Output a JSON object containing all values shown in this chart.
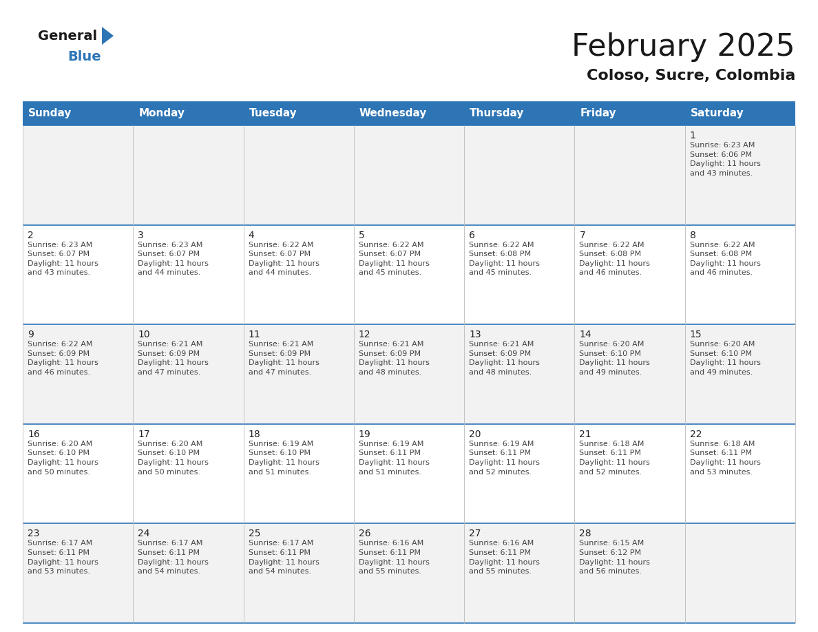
{
  "title": "February 2025",
  "subtitle": "Coloso, Sucre, Colombia",
  "header_bg_color": "#2e75b6",
  "header_text_color": "#ffffff",
  "cell_bg_color_odd": "#f2f2f2",
  "cell_bg_color_even": "#ffffff",
  "border_color": "#2e75b6",
  "day_headers": [
    "Sunday",
    "Monday",
    "Tuesday",
    "Wednesday",
    "Thursday",
    "Friday",
    "Saturday"
  ],
  "weeks": [
    [
      {
        "day": null,
        "text": ""
      },
      {
        "day": null,
        "text": ""
      },
      {
        "day": null,
        "text": ""
      },
      {
        "day": null,
        "text": ""
      },
      {
        "day": null,
        "text": ""
      },
      {
        "day": null,
        "text": ""
      },
      {
        "day": 1,
        "text": "Sunrise: 6:23 AM\nSunset: 6:06 PM\nDaylight: 11 hours\nand 43 minutes."
      }
    ],
    [
      {
        "day": 2,
        "text": "Sunrise: 6:23 AM\nSunset: 6:07 PM\nDaylight: 11 hours\nand 43 minutes."
      },
      {
        "day": 3,
        "text": "Sunrise: 6:23 AM\nSunset: 6:07 PM\nDaylight: 11 hours\nand 44 minutes."
      },
      {
        "day": 4,
        "text": "Sunrise: 6:22 AM\nSunset: 6:07 PM\nDaylight: 11 hours\nand 44 minutes."
      },
      {
        "day": 5,
        "text": "Sunrise: 6:22 AM\nSunset: 6:07 PM\nDaylight: 11 hours\nand 45 minutes."
      },
      {
        "day": 6,
        "text": "Sunrise: 6:22 AM\nSunset: 6:08 PM\nDaylight: 11 hours\nand 45 minutes."
      },
      {
        "day": 7,
        "text": "Sunrise: 6:22 AM\nSunset: 6:08 PM\nDaylight: 11 hours\nand 46 minutes."
      },
      {
        "day": 8,
        "text": "Sunrise: 6:22 AM\nSunset: 6:08 PM\nDaylight: 11 hours\nand 46 minutes."
      }
    ],
    [
      {
        "day": 9,
        "text": "Sunrise: 6:22 AM\nSunset: 6:09 PM\nDaylight: 11 hours\nand 46 minutes."
      },
      {
        "day": 10,
        "text": "Sunrise: 6:21 AM\nSunset: 6:09 PM\nDaylight: 11 hours\nand 47 minutes."
      },
      {
        "day": 11,
        "text": "Sunrise: 6:21 AM\nSunset: 6:09 PM\nDaylight: 11 hours\nand 47 minutes."
      },
      {
        "day": 12,
        "text": "Sunrise: 6:21 AM\nSunset: 6:09 PM\nDaylight: 11 hours\nand 48 minutes."
      },
      {
        "day": 13,
        "text": "Sunrise: 6:21 AM\nSunset: 6:09 PM\nDaylight: 11 hours\nand 48 minutes."
      },
      {
        "day": 14,
        "text": "Sunrise: 6:20 AM\nSunset: 6:10 PM\nDaylight: 11 hours\nand 49 minutes."
      },
      {
        "day": 15,
        "text": "Sunrise: 6:20 AM\nSunset: 6:10 PM\nDaylight: 11 hours\nand 49 minutes."
      }
    ],
    [
      {
        "day": 16,
        "text": "Sunrise: 6:20 AM\nSunset: 6:10 PM\nDaylight: 11 hours\nand 50 minutes."
      },
      {
        "day": 17,
        "text": "Sunrise: 6:20 AM\nSunset: 6:10 PM\nDaylight: 11 hours\nand 50 minutes."
      },
      {
        "day": 18,
        "text": "Sunrise: 6:19 AM\nSunset: 6:10 PM\nDaylight: 11 hours\nand 51 minutes."
      },
      {
        "day": 19,
        "text": "Sunrise: 6:19 AM\nSunset: 6:11 PM\nDaylight: 11 hours\nand 51 minutes."
      },
      {
        "day": 20,
        "text": "Sunrise: 6:19 AM\nSunset: 6:11 PM\nDaylight: 11 hours\nand 52 minutes."
      },
      {
        "day": 21,
        "text": "Sunrise: 6:18 AM\nSunset: 6:11 PM\nDaylight: 11 hours\nand 52 minutes."
      },
      {
        "day": 22,
        "text": "Sunrise: 6:18 AM\nSunset: 6:11 PM\nDaylight: 11 hours\nand 53 minutes."
      }
    ],
    [
      {
        "day": 23,
        "text": "Sunrise: 6:17 AM\nSunset: 6:11 PM\nDaylight: 11 hours\nand 53 minutes."
      },
      {
        "day": 24,
        "text": "Sunrise: 6:17 AM\nSunset: 6:11 PM\nDaylight: 11 hours\nand 54 minutes."
      },
      {
        "day": 25,
        "text": "Sunrise: 6:17 AM\nSunset: 6:11 PM\nDaylight: 11 hours\nand 54 minutes."
      },
      {
        "day": 26,
        "text": "Sunrise: 6:16 AM\nSunset: 6:11 PM\nDaylight: 11 hours\nand 55 minutes."
      },
      {
        "day": 27,
        "text": "Sunrise: 6:16 AM\nSunset: 6:11 PM\nDaylight: 11 hours\nand 55 minutes."
      },
      {
        "day": 28,
        "text": "Sunrise: 6:15 AM\nSunset: 6:12 PM\nDaylight: 11 hours\nand 56 minutes."
      },
      {
        "day": null,
        "text": ""
      }
    ]
  ],
  "logo_text_general": "General",
  "logo_text_blue": "Blue",
  "logo_color_general": "#1a1a1a",
  "logo_color_blue": "#2e75b6",
  "logo_triangle_color": "#2e75b6",
  "title_fontsize": 32,
  "subtitle_fontsize": 16,
  "header_fontsize": 11,
  "day_num_fontsize": 10,
  "cell_text_fontsize": 8
}
